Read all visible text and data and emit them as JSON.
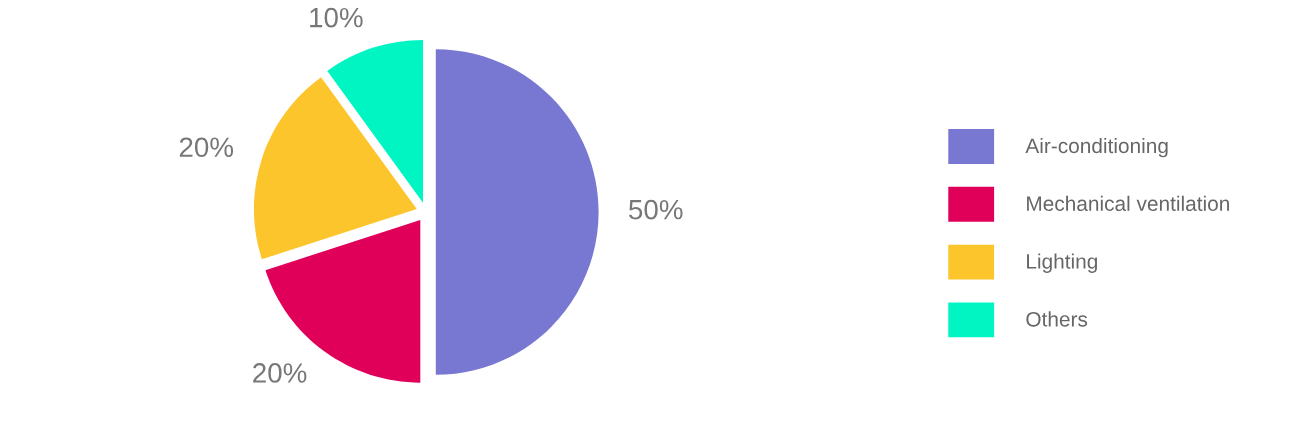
{
  "chart_data": {
    "type": "pie",
    "categories": [
      "Air-conditioning",
      "Mechanical ventilation",
      "Lighting",
      "Others"
    ],
    "values": [
      50,
      20,
      20,
      10
    ],
    "value_labels": [
      "50%",
      "20%",
      "20%",
      "10%"
    ],
    "colors": [
      "#7878d2",
      "#e0005a",
      "#fcc52c",
      "#00f5c3"
    ],
    "legend": "right"
  }
}
